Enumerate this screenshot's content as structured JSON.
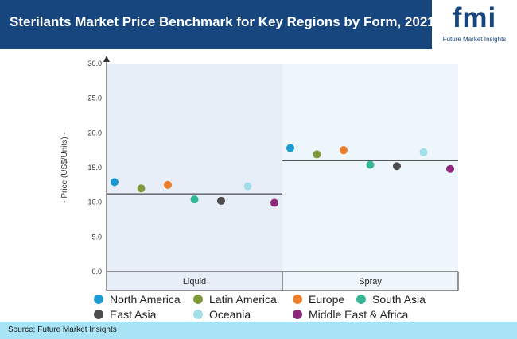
{
  "header": {
    "title": "Sterilants Market Price Benchmark for Key Regions by Form, 2021"
  },
  "logo": {
    "brand": "fmi",
    "tagline": "Future Market Insights"
  },
  "colors": {
    "header_bg": "#17467e",
    "footer_bg": "#a8e3f6",
    "panel_left": "#e8eef8",
    "panel_right": "#edf6fa"
  },
  "chart_data": {
    "type": "scatter",
    "title": "Sterilants Market Price Benchmark for Key Regions by Form, 2021",
    "ylabel": "- Price (US$/Units) -",
    "xlabel": "",
    "ylim": [
      0,
      30
    ],
    "yticks": [
      "0.0",
      "5.0",
      "10.0",
      "15.0",
      "20.0",
      "25.0",
      "30.0"
    ],
    "grid": false,
    "legend_position": "bottom",
    "categories": [
      "Liquid",
      "Spray"
    ],
    "averages": [
      11.2,
      16.0
    ],
    "series": [
      {
        "name": "North America",
        "color": "#1b9ad6",
        "values": [
          12.9,
          17.8
        ]
      },
      {
        "name": "Latin America",
        "color": "#7f9a3a",
        "values": [
          12.0,
          16.9
        ]
      },
      {
        "name": "Europe",
        "color": "#ee7d2a",
        "values": [
          12.5,
          17.5
        ]
      },
      {
        "name": "South Asia",
        "color": "#35b696",
        "values": [
          10.4,
          15.4
        ]
      },
      {
        "name": "East Asia",
        "color": "#4d4d4d",
        "values": [
          10.2,
          15.2
        ]
      },
      {
        "name": "Oceania",
        "color": "#a3dfe8",
        "values": [
          12.3,
          17.2
        ]
      },
      {
        "name": "Middle East & Africa",
        "color": "#8e2a7e",
        "values": [
          9.9,
          14.8
        ]
      }
    ]
  },
  "footer": {
    "source": "Source: Future Market Insights"
  }
}
